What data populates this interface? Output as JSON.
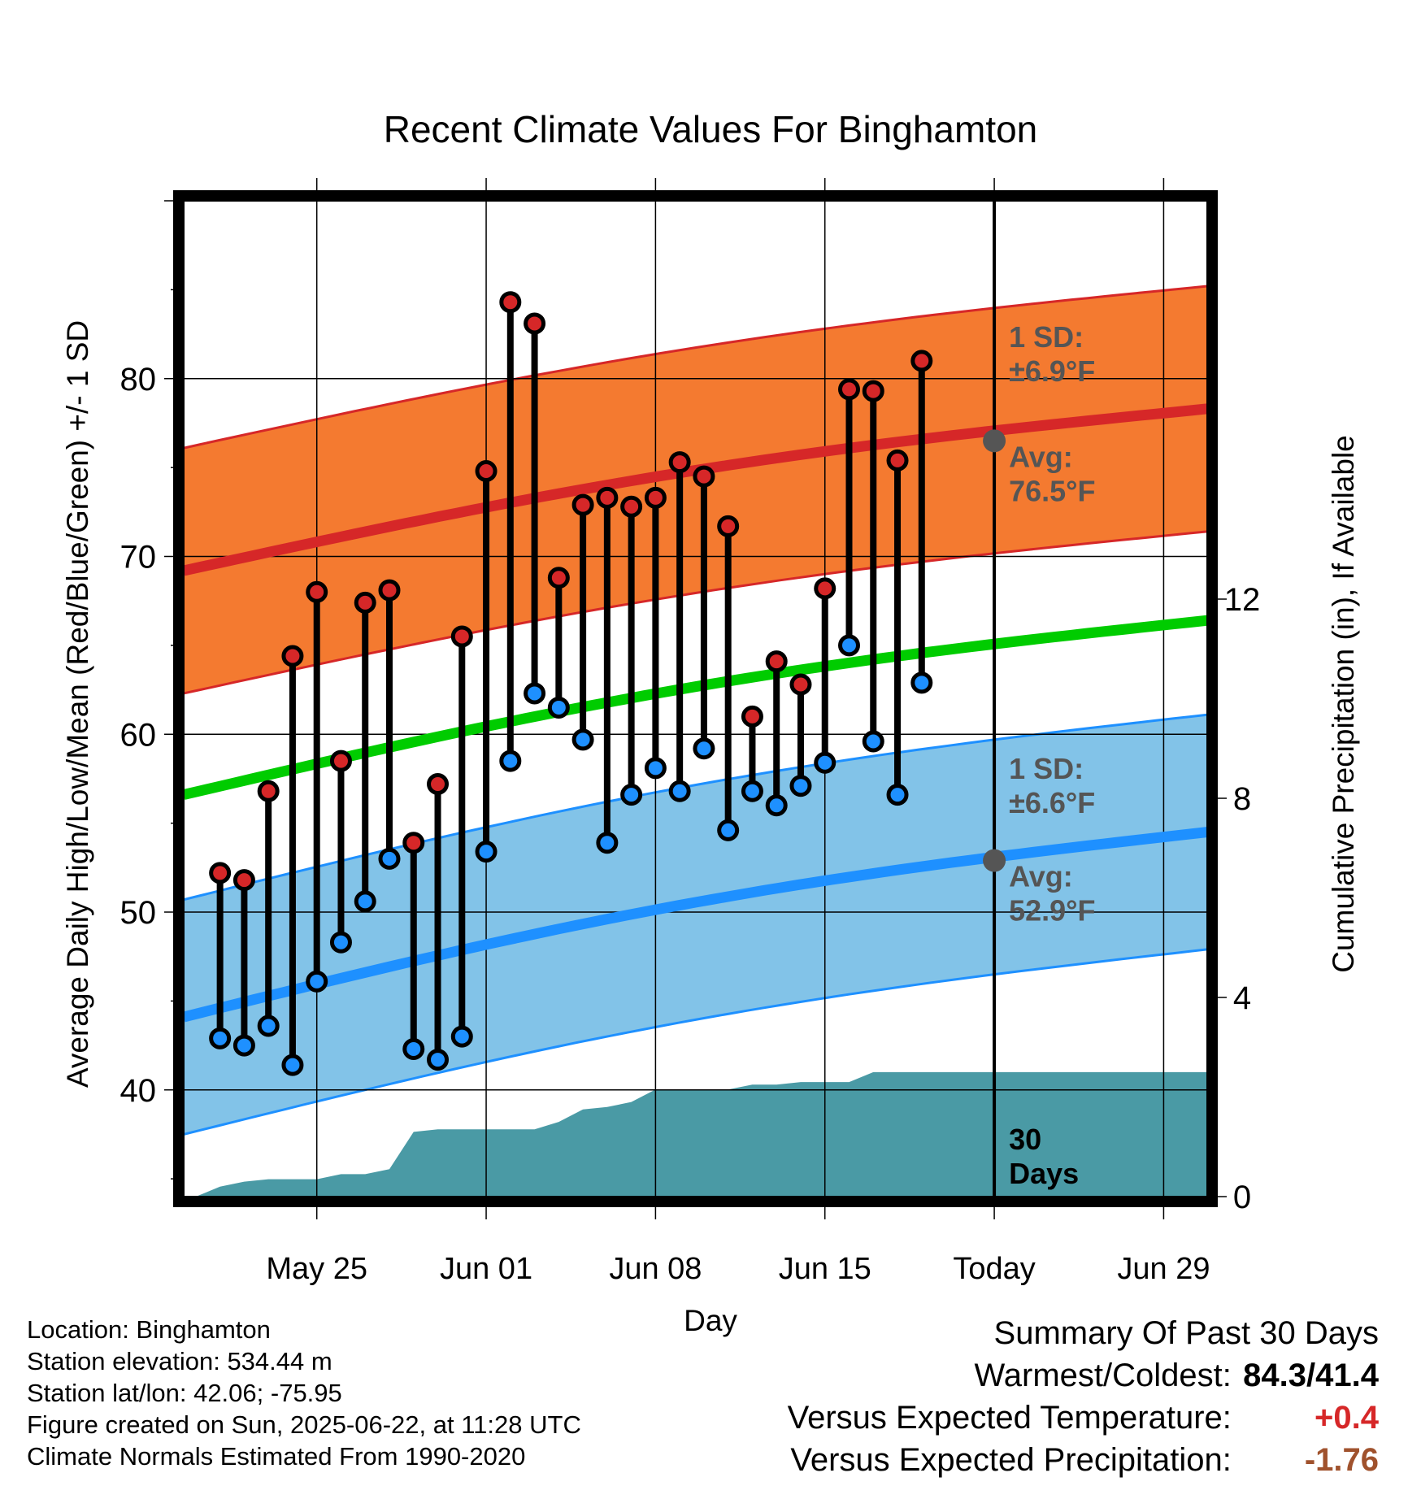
{
  "chart_data": {
    "type": "line",
    "title": "Recent Climate Values For Binghamton",
    "xlabel": "Day",
    "ylabel": "Average Daily High/Low/Mean (Red/Blue/Green) +/- 1 SD",
    "y2label": "Cumulative Precipitation (in), If Available",
    "ylim": [
      34,
      90
    ],
    "y2lim": [
      0,
      20
    ],
    "y_ticks": [
      "40",
      "50",
      "60",
      "70",
      "80"
    ],
    "y2_ticks": [
      "0",
      "4",
      "8",
      "12"
    ],
    "x_ticks": [
      {
        "day": 5,
        "label": "May 25"
      },
      {
        "day": 12,
        "label": "Jun 01"
      },
      {
        "day": 19,
        "label": "Jun 08"
      },
      {
        "day": 26,
        "label": "Jun 15"
      },
      {
        "day": 33,
        "label": "Today"
      },
      {
        "day": 40,
        "label": "Jun 29"
      }
    ],
    "day_range": [
      -0.5,
      41.8
    ],
    "today_day": 33,
    "grid": true,
    "highs": [
      52.2,
      51.8,
      56.8,
      64.4,
      68.0,
      58.5,
      67.4,
      68.1,
      53.9,
      57.2,
      65.5,
      74.8,
      84.3,
      83.1,
      68.8,
      72.9,
      73.3,
      72.8,
      73.3,
      75.3,
      74.5,
      71.7,
      61.0,
      64.1,
      62.8,
      68.2,
      79.4,
      79.3,
      75.4,
      81.0
    ],
    "lows": [
      42.9,
      42.5,
      43.6,
      41.4,
      46.1,
      48.3,
      50.6,
      53.0,
      42.3,
      41.7,
      43.0,
      53.4,
      58.5,
      62.3,
      61.5,
      59.7,
      53.9,
      56.6,
      58.1,
      56.8,
      59.2,
      54.6,
      56.8,
      56.0,
      57.1,
      58.4,
      65.0,
      59.6,
      56.6,
      62.9
    ],
    "normal_high": {
      "start": 69.2,
      "end": 78.3
    },
    "normal_high_sd": 6.9,
    "normal_low": {
      "start": 44.1,
      "end": 54.5
    },
    "normal_low_sd": 6.6,
    "normal_mean": {
      "start": 56.6,
      "end": 66.4
    },
    "precip_cumulative": [
      0.0,
      0.2,
      0.3,
      0.35,
      0.35,
      0.35,
      0.45,
      0.45,
      0.55,
      1.3,
      1.35,
      1.35,
      1.35,
      1.35,
      1.35,
      1.5,
      1.75,
      1.8,
      1.9,
      2.15,
      2.15,
      2.15,
      2.15,
      2.25,
      2.25,
      2.3,
      2.3,
      2.3,
      2.5,
      2.5,
      2.5,
      2.5,
      2.5,
      2.5,
      2.5,
      2.5,
      2.5,
      2.5,
      2.5,
      2.5,
      2.5,
      2.5
    ],
    "annotations": {
      "high_sd_line1": "1 SD:",
      "high_sd_line2": "±6.9°F",
      "high_avg_line1": "Avg:",
      "high_avg_line2": "76.5°F",
      "high_avg_value": 76.5,
      "low_sd_line1": "1 SD:",
      "low_sd_line2": "±6.6°F",
      "low_avg_line1": "Avg:",
      "low_avg_line2": "52.9°F",
      "low_avg_value": 52.9,
      "days_line1": "30",
      "days_line2": "Days"
    },
    "colors": {
      "high_band": "#f47a30",
      "high_line": "#d62728",
      "high_band_edge": "#d62728",
      "low_band": "#82c3e8",
      "low_line": "#1e90ff",
      "low_band_edge": "#1e90ff",
      "mean_line": "#00cc00",
      "precip": "#4a9aa5",
      "high_dot": "#d62728",
      "low_dot": "#1e90ff",
      "avg_marker": "#555555",
      "annotation_text": "#555555",
      "pos_temp": "#d62728",
      "neg_precip": "#a0522d"
    }
  },
  "footer_left": {
    "location": "Location: Binghamton",
    "elevation": "Station elevation: 534.44 m",
    "latlon": "Station lat/lon: 42.06; -75.95",
    "created": "Figure created on Sun, 2025-06-22, at 11:28 UTC",
    "normals": "Climate Normals Estimated From 1990-2020"
  },
  "footer_right": {
    "title": "Summary Of Past 30 Days",
    "warm_cold_label": "Warmest/Coldest:",
    "warm_cold_value": "84.3/41.4",
    "temp_label": "Versus Expected Temperature:",
    "temp_value": "+0.4",
    "precip_label": "Versus Expected Precipitation:",
    "precip_value": "-1.76"
  }
}
